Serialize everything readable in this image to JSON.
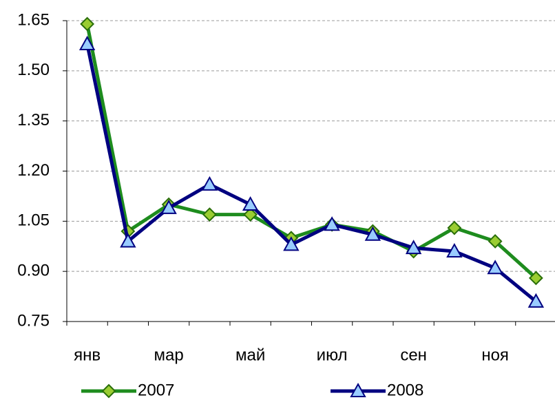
{
  "chart_data": {
    "type": "line",
    "categories": [
      "янв",
      null,
      "мар",
      null,
      "май",
      null,
      "июл",
      null,
      "сен",
      null,
      "ноя",
      null
    ],
    "series": [
      {
        "name": "2007",
        "color": "#1e8c1e",
        "marker": "diamond",
        "marker_fill": "#9acd32",
        "marker_stroke": "#2a6e0a",
        "values": [
          1.64,
          1.02,
          1.1,
          1.07,
          1.07,
          1.0,
          1.04,
          1.02,
          0.96,
          1.03,
          0.99,
          0.88
        ]
      },
      {
        "name": "2008",
        "color": "#000080",
        "marker": "triangle",
        "marker_fill": "#99ccff",
        "marker_stroke": "#000080",
        "values": [
          1.58,
          0.99,
          1.09,
          1.16,
          1.1,
          0.98,
          1.04,
          1.01,
          0.97,
          0.96,
          0.91,
          0.81
        ]
      }
    ],
    "ylim": [
      0.75,
      1.65
    ],
    "yticks": [
      0.75,
      {
        "value": 0.9,
        "label": "0.90"
      },
      1.05,
      {
        "value": 1.2,
        "label": "1.20"
      },
      1.35,
      {
        "value": 1.5,
        "label": "1.50"
      },
      1.65
    ],
    "grid": true,
    "legend": "bottom"
  }
}
